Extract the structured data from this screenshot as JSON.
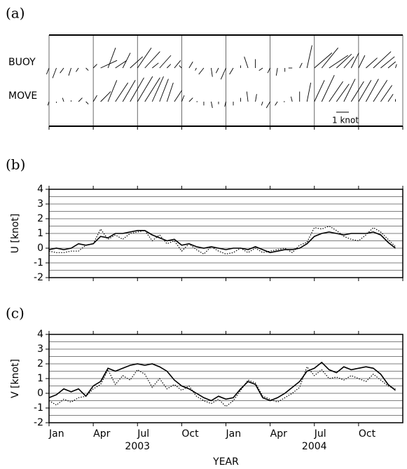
{
  "chart_data": [
    {
      "type": "stick",
      "label": "(a)",
      "rows": [
        "BUOY",
        "MOVE"
      ],
      "scale": {
        "value": 1,
        "label": "1 knot"
      }
    },
    {
      "type": "line",
      "label": "(b)",
      "ylabel": "U [knot]",
      "x": [
        0,
        0.5,
        1,
        1.5,
        2,
        2.5,
        3,
        3.5,
        4,
        4.5,
        5,
        5.5,
        6,
        6.5,
        7,
        7.5,
        8,
        8.5,
        9,
        9.5,
        10,
        10.5,
        11,
        11.5,
        12,
        12.5,
        13,
        13.5,
        14,
        14.5,
        15,
        15.5,
        16,
        16.5,
        17,
        17.5,
        18,
        18.5,
        19,
        19.5,
        20,
        20.5,
        21,
        21.5,
        22,
        22.5,
        23,
        23.5
      ],
      "xlim": [
        0,
        24
      ],
      "xticks": [
        0,
        3,
        6,
        9,
        12,
        15,
        18,
        21,
        24
      ],
      "ylim": [
        -2,
        4
      ],
      "yticks": [
        -2,
        -1,
        0,
        1,
        2,
        3,
        4
      ],
      "minor_yticks": [
        -1.5,
        -0.5,
        0.5,
        1.5,
        2.5,
        3.5
      ],
      "grid": true,
      "series": [
        {
          "style": "dotted",
          "color": "#000000",
          "values": [
            -0.2,
            -0.3,
            -0.3,
            -0.2,
            -0.2,
            0.2,
            0.3,
            1.3,
            0.6,
            0.9,
            0.6,
            1.0,
            1.1,
            1.2,
            0.5,
            0.9,
            0.3,
            0.5,
            -0.2,
            0.3,
            -0.1,
            -0.4,
            0.1,
            -0.2,
            -0.4,
            -0.3,
            0.0,
            -0.3,
            0.0,
            -0.3,
            -0.2,
            -0.1,
            0.0,
            -0.3,
            0.2,
            0.4,
            1.4,
            1.3,
            1.5,
            1.2,
            0.8,
            0.6,
            0.5,
            0.9,
            1.4,
            1.1,
            0.6,
            0.1
          ]
        },
        {
          "style": "solid",
          "color": "#000000",
          "values": [
            -0.1,
            0.0,
            -0.1,
            0.0,
            0.3,
            0.2,
            0.3,
            0.8,
            0.7,
            1.0,
            1.0,
            1.1,
            1.2,
            1.2,
            0.9,
            0.7,
            0.5,
            0.6,
            0.2,
            0.3,
            0.1,
            0.0,
            0.1,
            0.0,
            -0.1,
            0.0,
            0.0,
            -0.1,
            0.1,
            -0.1,
            -0.3,
            -0.2,
            -0.1,
            -0.1,
            0.0,
            0.3,
            0.8,
            1.0,
            1.1,
            1.0,
            0.9,
            1.0,
            1.0,
            1.0,
            1.1,
            0.9,
            0.4,
            0.0
          ]
        }
      ]
    },
    {
      "type": "line",
      "label": "(c)",
      "ylabel": "V [knot]",
      "xlabel": "YEAR",
      "x": [
        0,
        0.5,
        1,
        1.5,
        2,
        2.5,
        3,
        3.5,
        4,
        4.5,
        5,
        5.5,
        6,
        6.5,
        7,
        7.5,
        8,
        8.5,
        9,
        9.5,
        10,
        10.5,
        11,
        11.5,
        12,
        12.5,
        13,
        13.5,
        14,
        14.5,
        15,
        15.5,
        16,
        16.5,
        17,
        17.5,
        18,
        18.5,
        19,
        19.5,
        20,
        20.5,
        21,
        21.5,
        22,
        22.5,
        23,
        23.5
      ],
      "xlim": [
        0,
        24
      ],
      "xticks": [
        {
          "value": 0,
          "label": "Jan"
        },
        {
          "value": 3,
          "label": "Apr"
        },
        {
          "value": 6,
          "label": "Jul"
        },
        {
          "value": 9,
          "label": "Oct"
        },
        {
          "value": 12,
          "label": "Jan"
        },
        {
          "value": 15,
          "label": "Apr"
        },
        {
          "value": 18,
          "label": "Jul"
        },
        {
          "value": 21,
          "label": "Oct"
        }
      ],
      "year_labels": [
        {
          "value": 6,
          "label": "2003"
        },
        {
          "value": 18,
          "label": "2004"
        }
      ],
      "ylim": [
        -2,
        4
      ],
      "yticks": [
        -2,
        -1,
        0,
        1,
        2,
        3,
        4
      ],
      "minor_yticks": [
        -1.5,
        -0.5,
        0.5,
        1.5,
        2.5,
        3.5
      ],
      "grid": true,
      "series": [
        {
          "style": "dotted",
          "color": "#000000",
          "values": [
            -0.5,
            -0.8,
            -0.4,
            -0.6,
            -0.3,
            -0.2,
            0.3,
            0.6,
            1.6,
            0.6,
            1.2,
            0.9,
            1.6,
            1.3,
            0.4,
            1.0,
            0.3,
            0.6,
            0.2,
            0.5,
            -0.2,
            -0.5,
            -0.7,
            -0.4,
            -0.9,
            -0.5,
            0.2,
            0.9,
            0.7,
            -0.2,
            -0.4,
            -0.6,
            -0.3,
            0.0,
            0.4,
            1.8,
            1.2,
            1.6,
            1.0,
            1.1,
            0.9,
            1.2,
            1.0,
            0.8,
            1.3,
            0.9,
            0.5,
            0.3
          ]
        },
        {
          "style": "solid",
          "color": "#000000",
          "values": [
            -0.3,
            -0.1,
            0.3,
            0.1,
            0.3,
            -0.2,
            0.5,
            0.8,
            1.7,
            1.5,
            1.7,
            1.9,
            2.0,
            1.9,
            2.0,
            1.8,
            1.5,
            0.9,
            0.5,
            0.3,
            0.0,
            -0.3,
            -0.5,
            -0.2,
            -0.4,
            -0.3,
            0.3,
            0.8,
            0.6,
            -0.3,
            -0.5,
            -0.3,
            0.0,
            0.4,
            0.8,
            1.5,
            1.7,
            2.1,
            1.6,
            1.4,
            1.8,
            1.6,
            1.7,
            1.8,
            1.7,
            1.3,
            0.6,
            0.2
          ]
        }
      ]
    }
  ]
}
